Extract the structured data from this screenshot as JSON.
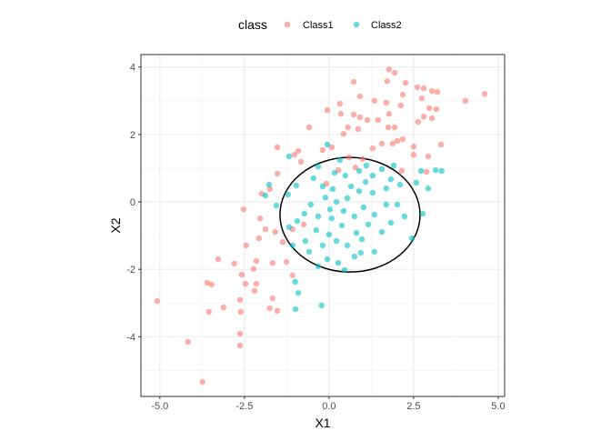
{
  "chart_data": {
    "type": "scatter",
    "xlabel": "X1",
    "ylabel": "X2",
    "xlim": [
      -5.56,
      5.19
    ],
    "ylim": [
      -5.77,
      4.37
    ],
    "x_ticks": [
      -5.0,
      -2.5,
      0.0,
      2.5,
      5.0
    ],
    "x_tick_labels": [
      "-5.0",
      "-2.5",
      "0.0",
      "2.5",
      "5.0"
    ],
    "y_ticks": [
      -4,
      -2,
      0,
      2,
      4
    ],
    "y_tick_labels": [
      "-4",
      "-2",
      "0",
      "2",
      "4"
    ],
    "grid": true,
    "legend": {
      "title": "class",
      "placement": "top",
      "entries": [
        "Class1",
        "Class2"
      ]
    },
    "colors": {
      "Class1": "#F8766D",
      "Class2": "#00BFC4"
    },
    "ellipse": {
      "center": [
        0.62,
        -0.38
      ],
      "radii": [
        2.07,
        1.7
      ],
      "color": "#000000"
    },
    "series": [
      {
        "name": "Class1",
        "points": [
          [
            4.6,
            3.2
          ],
          [
            4.03,
            3.0
          ],
          [
            1.77,
            3.93
          ],
          [
            1.94,
            3.83
          ],
          [
            1.72,
            3.58
          ],
          [
            0.73,
            3.56
          ],
          [
            2.26,
            3.53
          ],
          [
            2.61,
            3.4
          ],
          [
            2.8,
            3.37
          ],
          [
            3.04,
            3.29
          ],
          [
            3.2,
            3.26
          ],
          [
            2.18,
            3.18
          ],
          [
            2.74,
            3.07
          ],
          [
            0.91,
            3.13
          ],
          [
            1.34,
            3.0
          ],
          [
            1.69,
            2.94
          ],
          [
            2.12,
            2.86
          ],
          [
            2.96,
            2.78
          ],
          [
            3.17,
            2.75
          ],
          [
            3.04,
            2.48
          ],
          [
            2.8,
            2.53
          ],
          [
            2.63,
            2.37
          ],
          [
            0.32,
            2.91
          ],
          [
            -0.05,
            2.72
          ],
          [
            0.35,
            2.61
          ],
          [
            0.73,
            2.59
          ],
          [
            0.91,
            2.51
          ],
          [
            1.13,
            2.43
          ],
          [
            1.45,
            2.43
          ],
          [
            1.77,
            2.61
          ],
          [
            1.75,
            2.21
          ],
          [
            1.94,
            2.21
          ],
          [
            2.02,
            1.81
          ],
          [
            2.18,
            1.86
          ],
          [
            3.31,
            1.7
          ],
          [
            2.93,
            1.35
          ],
          [
            2.5,
            1.64
          ],
          [
            2.5,
            1.4
          ],
          [
            0.56,
            2.21
          ],
          [
            0.86,
            2.16
          ],
          [
            0.43,
            2.02
          ],
          [
            -0.59,
            2.21
          ],
          [
            -1.53,
            1.62
          ],
          [
            -0.91,
            1.51
          ],
          [
            -1.02,
            1.4
          ],
          [
            -0.83,
            1.19
          ],
          [
            -0.19,
            1.54
          ],
          [
            0.08,
            1.62
          ],
          [
            0.59,
            1.32
          ],
          [
            0.99,
            1.27
          ],
          [
            1.29,
            1.59
          ],
          [
            1.56,
            1.73
          ],
          [
            1.88,
            1.73
          ],
          [
            -1.53,
            0.84
          ],
          [
            -1.75,
            0.38
          ],
          [
            -1.99,
            0.24
          ],
          [
            -2.53,
            -0.22
          ],
          [
            -2.04,
            -0.49
          ],
          [
            -1.88,
            -0.81
          ],
          [
            -2.07,
            -1.08
          ],
          [
            -1.59,
            -0.89
          ],
          [
            -1.37,
            -1.19
          ],
          [
            -1.08,
            -0.81
          ],
          [
            -0.75,
            -0.67
          ],
          [
            -2.45,
            -1.29
          ],
          [
            -3.28,
            -1.7
          ],
          [
            -2.8,
            -1.83
          ],
          [
            -2.58,
            -2.16
          ],
          [
            -2.23,
            -1.99
          ],
          [
            -1.67,
            -1.81
          ],
          [
            -1.26,
            -1.78
          ],
          [
            -1.08,
            -2.18
          ],
          [
            -2.15,
            -2.43
          ],
          [
            -2.47,
            -2.43
          ],
          [
            -2.2,
            -2.64
          ],
          [
            -2.63,
            -2.91
          ],
          [
            -3.6,
            -2.4
          ],
          [
            -3.47,
            -2.45
          ],
          [
            -5.08,
            -2.94
          ],
          [
            -2.61,
            -3.26
          ],
          [
            -3.55,
            -3.26
          ],
          [
            -3.12,
            -3.13
          ],
          [
            -1.53,
            -3.23
          ],
          [
            -2.63,
            -3.91
          ],
          [
            -2.63,
            -4.26
          ],
          [
            -4.17,
            -4.15
          ],
          [
            -3.74,
            -5.34
          ],
          [
            -1.75,
            -3.15
          ],
          [
            -1.67,
            -2.86
          ],
          [
            -2.15,
            -1.75
          ],
          [
            -0.08,
            0.54
          ],
          [
            0.27,
            0.94
          ],
          [
            0.78,
            1.02
          ],
          [
            2.15,
            0.92
          ],
          [
            2.88,
            0.89
          ]
        ]
      },
      {
        "name": "Class2",
        "points": [
          [
            3.15,
            0.94
          ],
          [
            3.33,
            0.92
          ],
          [
            2.72,
            0.92
          ],
          [
            2.58,
            0.57
          ],
          [
            2.93,
            0.4
          ],
          [
            2.77,
            -0.35
          ],
          [
            2.45,
            -1.08
          ],
          [
            -0.05,
            1.7
          ],
          [
            -1.18,
            1.35
          ],
          [
            -1.77,
            0.51
          ],
          [
            -1.88,
            0.19
          ],
          [
            -1.56,
            -0.11
          ],
          [
            -1.21,
            0.22
          ],
          [
            -0.97,
            0.49
          ],
          [
            -0.46,
            0.7
          ],
          [
            -0.19,
            0.46
          ],
          [
            0.16,
            0.86
          ],
          [
            0.48,
            0.78
          ],
          [
            0.89,
            0.92
          ],
          [
            1.29,
            0.78
          ],
          [
            1.56,
            0.97
          ],
          [
            1.83,
            0.67
          ],
          [
            2.1,
            0.51
          ],
          [
            1.69,
            0.4
          ],
          [
            1.29,
            0.27
          ],
          [
            0.89,
            0.32
          ],
          [
            0.54,
            0.11
          ],
          [
            0.22,
            0.0
          ],
          [
            -0.11,
            0.13
          ],
          [
            -0.54,
            -0.08
          ],
          [
            -0.73,
            -0.35
          ],
          [
            -0.94,
            -0.57
          ],
          [
            -1.18,
            -0.75
          ],
          [
            -0.32,
            -0.43
          ],
          [
            0.08,
            -0.49
          ],
          [
            0.43,
            -0.27
          ],
          [
            0.75,
            -0.43
          ],
          [
            1.02,
            -0.16
          ],
          [
            1.34,
            -0.38
          ],
          [
            1.69,
            -0.08
          ],
          [
            2.02,
            -0.08
          ],
          [
            2.23,
            -0.43
          ],
          [
            1.83,
            -0.62
          ],
          [
            1.56,
            -0.89
          ],
          [
            1.16,
            -0.67
          ],
          [
            0.81,
            -0.92
          ],
          [
            0.38,
            -0.7
          ],
          [
            0.0,
            -0.97
          ],
          [
            -0.38,
            -0.84
          ],
          [
            -0.7,
            -1.16
          ],
          [
            -1.08,
            -1.29
          ],
          [
            -0.59,
            -1.48
          ],
          [
            -0.19,
            -1.29
          ],
          [
            0.22,
            -1.16
          ],
          [
            0.54,
            -1.29
          ],
          [
            0.94,
            -1.51
          ],
          [
            1.34,
            -1.48
          ],
          [
            0.97,
            -1.11
          ],
          [
            -0.05,
            -1.7
          ],
          [
            -0.32,
            -1.91
          ],
          [
            0.27,
            -1.81
          ],
          [
            0.46,
            -2.02
          ],
          [
            0.75,
            -1.62
          ],
          [
            -1.0,
            -2.37
          ],
          [
            -0.91,
            -2.7
          ],
          [
            -0.99,
            -3.18
          ],
          [
            -0.22,
            -3.07
          ],
          [
            0.03,
            -0.22
          ],
          [
            0.11,
            0.38
          ],
          [
            0.65,
            0.46
          ],
          [
            1.08,
            0.59
          ],
          [
            1.91,
            1.08
          ],
          [
            1.1,
            1.08
          ],
          [
            -0.32,
            1.05
          ],
          [
            0.32,
            1.24
          ]
        ]
      }
    ]
  }
}
